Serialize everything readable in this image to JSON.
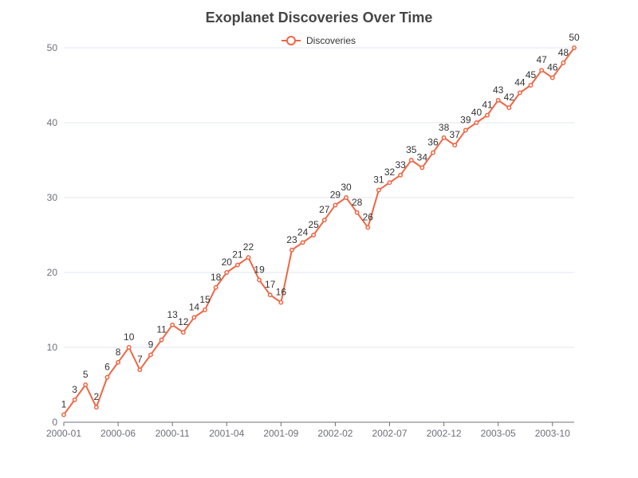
{
  "chart_data": {
    "type": "line",
    "title": "Exoplanet Discoveries Over Time",
    "legend": {
      "position": "top-center"
    },
    "grid": true,
    "ylim": [
      0,
      50
    ],
    "y_ticks": [
      0,
      10,
      20,
      30,
      40,
      50
    ],
    "x_tick_labels": [
      "2000-01",
      "2000-06",
      "2000-11",
      "2001-04",
      "2001-09",
      "2002-02",
      "2002-07",
      "2002-12",
      "2003-05",
      "2003-10"
    ],
    "x": [
      "2000-01",
      "2000-02",
      "2000-03",
      "2000-04",
      "2000-05",
      "2000-06",
      "2000-07",
      "2000-08",
      "2000-09",
      "2000-10",
      "2000-11",
      "2000-12",
      "2001-01",
      "2001-02",
      "2001-03",
      "2001-04",
      "2001-05",
      "2001-06",
      "2001-07",
      "2001-08",
      "2001-09",
      "2001-10",
      "2001-11",
      "2001-12",
      "2002-01",
      "2002-02",
      "2002-03",
      "2002-04",
      "2002-05",
      "2002-06",
      "2002-07",
      "2002-08",
      "2002-09",
      "2002-10",
      "2002-11",
      "2002-12",
      "2003-01",
      "2003-02",
      "2003-03",
      "2003-04",
      "2003-05",
      "2003-06",
      "2003-07",
      "2003-08",
      "2003-09",
      "2003-10",
      "2003-11",
      "2003-12"
    ],
    "series": [
      {
        "name": "Discoveries",
        "color": "#ee6644",
        "values": [
          1,
          3,
          5,
          2,
          6,
          8,
          10,
          7,
          9,
          11,
          13,
          12,
          14,
          15,
          18,
          20,
          21,
          22,
          19,
          17,
          16,
          23,
          24,
          25,
          27,
          29,
          30,
          28,
          26,
          31,
          32,
          33,
          35,
          34,
          36,
          38,
          37,
          39,
          40,
          41,
          43,
          42,
          44,
          45,
          47,
          46,
          48,
          50
        ]
      }
    ]
  }
}
